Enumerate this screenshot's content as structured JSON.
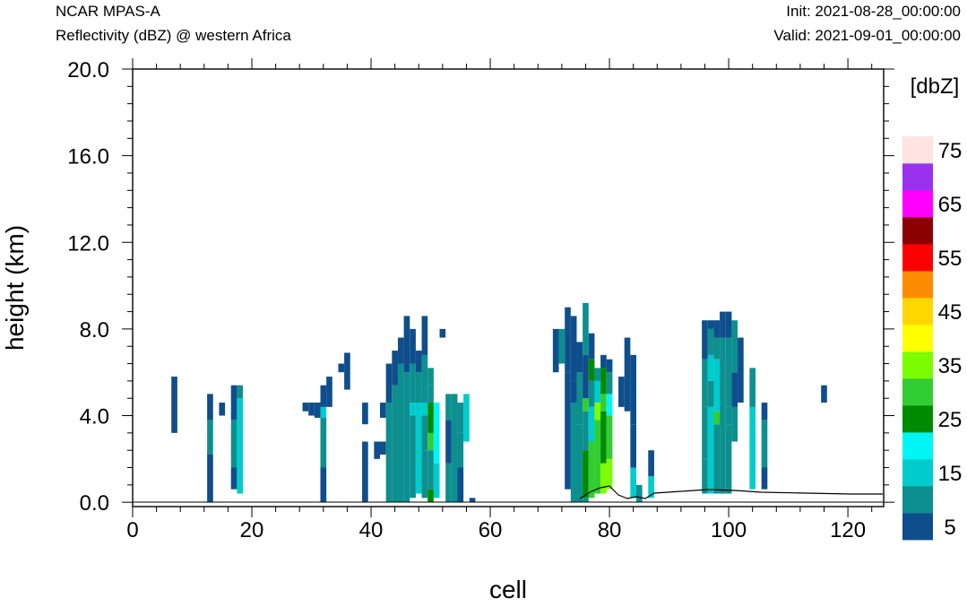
{
  "header": {
    "model": "NCAR MPAS-A",
    "field": "Reflectivity (dBZ) @ western Africa",
    "init": "Init: 2021-08-28_00:00:00",
    "valid": "Valid: 2021-09-01_00:00:00"
  },
  "chart_data": {
    "type": "heatmap",
    "xlabel": "cell",
    "ylabel": "height (km)",
    "xlim": [
      0,
      126
    ],
    "ylim": [
      -0.2,
      20.0
    ],
    "x_ticks": [
      "0",
      "20",
      "40",
      "60",
      "80",
      "100",
      "120"
    ],
    "y_ticks": [
      "0.0",
      "4.0",
      "8.0",
      "12.0",
      "16.0",
      "20.0"
    ],
    "x_tick_values": [
      0,
      20,
      40,
      60,
      80,
      100,
      120
    ],
    "y_tick_values": [
      0,
      4,
      8,
      12,
      16,
      20
    ],
    "colorbar": {
      "unit_label": "[dbZ]",
      "bins": [
        {
          "min": 0,
          "max": 10,
          "color": "#0f4e8c"
        },
        {
          "min": 10,
          "max": 15,
          "color": "#0d8f8f"
        },
        {
          "min": 15,
          "max": 20,
          "color": "#00cccc"
        },
        {
          "min": 20,
          "max": 25,
          "color": "#00f5f5"
        },
        {
          "min": 25,
          "max": 30,
          "color": "#008a00"
        },
        {
          "min": 30,
          "max": 35,
          "color": "#32cd32"
        },
        {
          "min": 35,
          "max": 40,
          "color": "#7cfc00"
        },
        {
          "min": 40,
          "max": 45,
          "color": "#ffff00"
        },
        {
          "min": 45,
          "max": 50,
          "color": "#ffd700"
        },
        {
          "min": 50,
          "max": 55,
          "color": "#ff8c00"
        },
        {
          "min": 55,
          "max": 60,
          "color": "#ff0000"
        },
        {
          "min": 60,
          "max": 65,
          "color": "#8b0000"
        },
        {
          "min": 65,
          "max": 70,
          "color": "#ff00ff"
        },
        {
          "min": 70,
          "max": 75,
          "color": "#9932ee"
        },
        {
          "min": 75,
          "max": 80,
          "color": "#ffe4e1"
        }
      ],
      "labels": [
        "5",
        "15",
        "25",
        "35",
        "45",
        "55",
        "65",
        "75"
      ]
    },
    "cells": [
      [
        7,
        3.2,
        5.8,
        0
      ],
      [
        13,
        0,
        1.0,
        0
      ],
      [
        13,
        1.0,
        2.2,
        0
      ],
      [
        13,
        2.2,
        3.8,
        1
      ],
      [
        13,
        3.8,
        5.0,
        0
      ],
      [
        15,
        4.0,
        4.6,
        0
      ],
      [
        17,
        0.6,
        1.6,
        0
      ],
      [
        17,
        1.6,
        3.8,
        1
      ],
      [
        17,
        3.8,
        5.4,
        0
      ],
      [
        18,
        0.4,
        4.8,
        2
      ],
      [
        18,
        4.8,
        5.4,
        1
      ],
      [
        29,
        4.2,
        4.6,
        0
      ],
      [
        30,
        4.0,
        4.6,
        0
      ],
      [
        31,
        3.9,
        4.6,
        0
      ],
      [
        32,
        0,
        1.6,
        0
      ],
      [
        32,
        1.6,
        3.9,
        1
      ],
      [
        32,
        3.9,
        4.4,
        2
      ],
      [
        32,
        4.4,
        5.4,
        0
      ],
      [
        33,
        4.4,
        5.8,
        0
      ],
      [
        35,
        6.0,
        6.4,
        0
      ],
      [
        36,
        5.2,
        6.9,
        0
      ],
      [
        39,
        3.6,
        4.6,
        0
      ],
      [
        39,
        0,
        1.6,
        0
      ],
      [
        39,
        1.6,
        2.8,
        0
      ],
      [
        41,
        2.0,
        2.8,
        0
      ],
      [
        42,
        2.2,
        2.8,
        0
      ],
      [
        42,
        3.9,
        4.6,
        0
      ],
      [
        43,
        0,
        4.6,
        1
      ],
      [
        43,
        4.6,
        6.4,
        0
      ],
      [
        44,
        0,
        5.4,
        1
      ],
      [
        44,
        5.4,
        7.0,
        0
      ],
      [
        45,
        0,
        6.4,
        1
      ],
      [
        45,
        6.4,
        7.6,
        0
      ],
      [
        46,
        0,
        4.6,
        1
      ],
      [
        46,
        4.6,
        6.0,
        1
      ],
      [
        46,
        6.0,
        8.6,
        0
      ],
      [
        47,
        0.2,
        4.0,
        1
      ],
      [
        47,
        4.0,
        4.6,
        2
      ],
      [
        47,
        4.6,
        6.4,
        1
      ],
      [
        47,
        6.4,
        8.0,
        0
      ],
      [
        48,
        0.4,
        4.6,
        2
      ],
      [
        48,
        4.6,
        6.0,
        1
      ],
      [
        48,
        6.0,
        7.0,
        0
      ],
      [
        49,
        0.2,
        2.4,
        1
      ],
      [
        49,
        2.4,
        4.0,
        1
      ],
      [
        49,
        4.0,
        4.6,
        2
      ],
      [
        49,
        4.6,
        5.2,
        1
      ],
      [
        49,
        5.2,
        6.8,
        1
      ],
      [
        49,
        6.8,
        8.6,
        0
      ],
      [
        50,
        0,
        0.6,
        4
      ],
      [
        50,
        0.6,
        2.4,
        1
      ],
      [
        50,
        2.4,
        3.2,
        5
      ],
      [
        50,
        3.2,
        4.6,
        4
      ],
      [
        50,
        4.6,
        5.4,
        1
      ],
      [
        50,
        5.4,
        6.2,
        1
      ],
      [
        51,
        0.2,
        1.8,
        2
      ],
      [
        51,
        1.8,
        4.6,
        3
      ],
      [
        52,
        7.6,
        8.0,
        0
      ],
      [
        53,
        0,
        1.8,
        1
      ],
      [
        53,
        1.8,
        3.8,
        0
      ],
      [
        53,
        3.8,
        5.0,
        1
      ],
      [
        54,
        0,
        5.0,
        1
      ],
      [
        55,
        0,
        1.6,
        0
      ],
      [
        55,
        1.6,
        3.2,
        1
      ],
      [
        55,
        3.2,
        4.6,
        1
      ],
      [
        56,
        2.8,
        5.0,
        2
      ],
      [
        57,
        0,
        0.2,
        0
      ],
      [
        71,
        6.0,
        8.0,
        0
      ],
      [
        72,
        6.4,
        8.0,
        1
      ],
      [
        73,
        0.6,
        6.0,
        0
      ],
      [
        73,
        6.0,
        9.0,
        0
      ],
      [
        74,
        0,
        4.6,
        1
      ],
      [
        74,
        4.6,
        5.6,
        0
      ],
      [
        74,
        5.6,
        8.6,
        0
      ],
      [
        75,
        0,
        3.6,
        1
      ],
      [
        75,
        3.6,
        6.0,
        1
      ],
      [
        75,
        6.0,
        7.4,
        0
      ],
      [
        76,
        0,
        0.2,
        1
      ],
      [
        76,
        0.2,
        2.4,
        4
      ],
      [
        76,
        2.4,
        4.2,
        1
      ],
      [
        76,
        4.2,
        4.8,
        5
      ],
      [
        76,
        4.8,
        6.8,
        0
      ],
      [
        76,
        6.8,
        9.2,
        1
      ],
      [
        77,
        0.2,
        2.8,
        5
      ],
      [
        77,
        2.8,
        4.4,
        2
      ],
      [
        77,
        4.4,
        5.6,
        1
      ],
      [
        77,
        5.6,
        6.6,
        4
      ],
      [
        77,
        6.6,
        7.8,
        0
      ],
      [
        78,
        0.4,
        3.8,
        5
      ],
      [
        78,
        3.8,
        4.6,
        6
      ],
      [
        78,
        4.6,
        5.6,
        2
      ],
      [
        78,
        5.6,
        6.2,
        1
      ],
      [
        79,
        0.4,
        1.8,
        6
      ],
      [
        79,
        1.8,
        4.2,
        4
      ],
      [
        79,
        4.2,
        5.0,
        5
      ],
      [
        79,
        5.0,
        6.2,
        4
      ],
      [
        79,
        6.2,
        6.8,
        0
      ],
      [
        80,
        0.6,
        2.0,
        6
      ],
      [
        80,
        2.0,
        4.0,
        5
      ],
      [
        80,
        4.0,
        5.0,
        3
      ],
      [
        80,
        5.0,
        6.0,
        1
      ],
      [
        80,
        6.0,
        6.6,
        0
      ],
      [
        82,
        4.4,
        5.8,
        0
      ],
      [
        83,
        4.2,
        7.6,
        0
      ],
      [
        84,
        0.2,
        1.6,
        2
      ],
      [
        84,
        1.6,
        3.6,
        0
      ],
      [
        84,
        3.6,
        6.8,
        0
      ],
      [
        85,
        0,
        0.8,
        1
      ],
      [
        87,
        0.2,
        1.2,
        2
      ],
      [
        87,
        1.2,
        2.4,
        0
      ],
      [
        96,
        0.4,
        2.0,
        1
      ],
      [
        96,
        2.0,
        4.4,
        1
      ],
      [
        96,
        4.4,
        6.6,
        1
      ],
      [
        96,
        6.6,
        8.4,
        0
      ],
      [
        97,
        0.4,
        4.4,
        2
      ],
      [
        97,
        4.4,
        5.6,
        1
      ],
      [
        97,
        5.6,
        6.8,
        2
      ],
      [
        97,
        6.8,
        8.0,
        1
      ],
      [
        97,
        8.0,
        8.4,
        0
      ],
      [
        98,
        0.4,
        3.6,
        1
      ],
      [
        98,
        3.6,
        4.2,
        5
      ],
      [
        98,
        4.2,
        6.6,
        2
      ],
      [
        98,
        6.6,
        7.6,
        1
      ],
      [
        98,
        7.6,
        8.4,
        0
      ],
      [
        99,
        0.4,
        4.6,
        1
      ],
      [
        99,
        4.6,
        7.6,
        1
      ],
      [
        99,
        7.6,
        8.8,
        0
      ],
      [
        100,
        0.4,
        3.6,
        1
      ],
      [
        100,
        3.6,
        4.4,
        1
      ],
      [
        100,
        4.4,
        7.6,
        1
      ],
      [
        100,
        7.6,
        8.8,
        0
      ],
      [
        101,
        2.8,
        4.4,
        1
      ],
      [
        101,
        4.4,
        6.0,
        0
      ],
      [
        101,
        6.0,
        8.4,
        1
      ],
      [
        102,
        4.6,
        7.6,
        0
      ],
      [
        104,
        0.6,
        4.4,
        2
      ],
      [
        104,
        4.4,
        6.2,
        1
      ],
      [
        106,
        0.6,
        1.6,
        0
      ],
      [
        106,
        1.6,
        2.8,
        1
      ],
      [
        106,
        2.8,
        3.8,
        1
      ],
      [
        106,
        3.8,
        4.6,
        0
      ],
      [
        116,
        4.6,
        5.4,
        0
      ]
    ]
  }
}
